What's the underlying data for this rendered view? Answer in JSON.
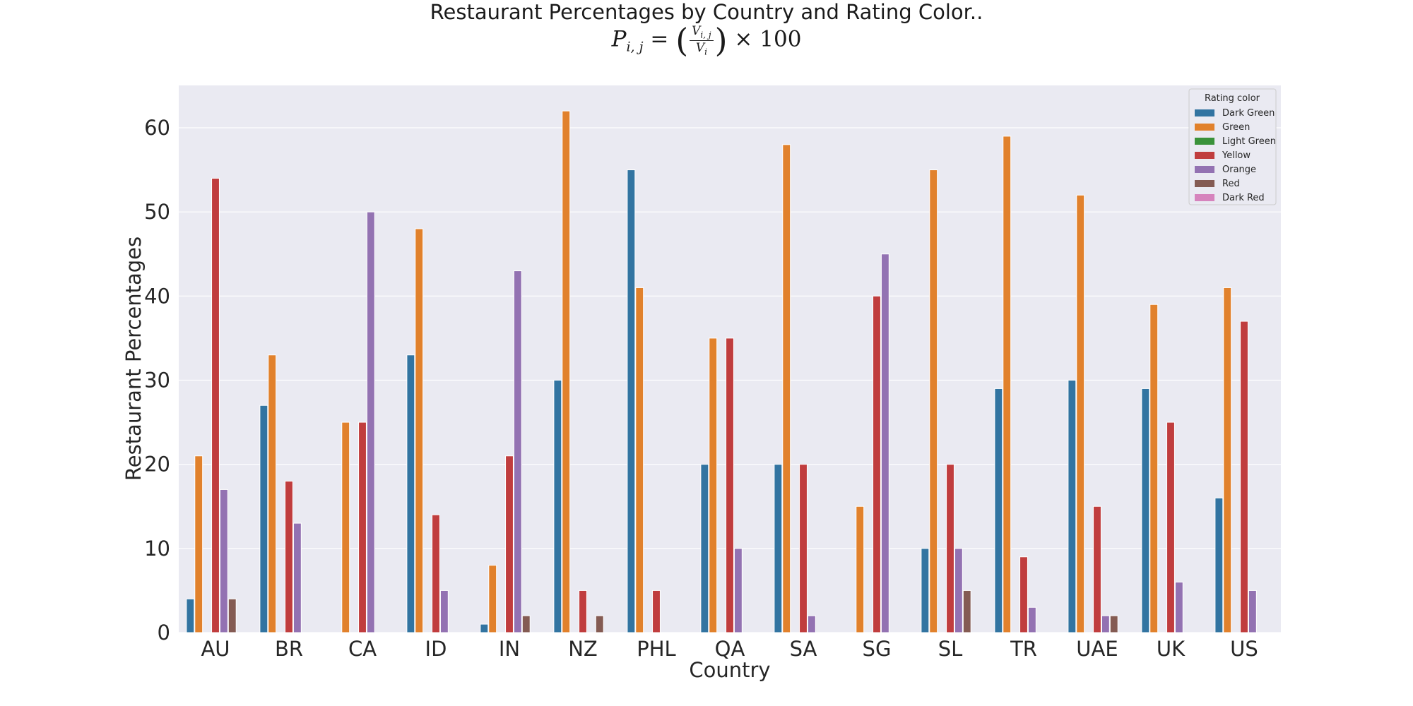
{
  "chart_data": {
    "type": "bar",
    "title": "Restaurant Percentages by Country and Rating Color..",
    "subtitle_formula": {
      "lhs": "P",
      "lhs_sub": "i, j",
      "eq": "=",
      "num": "V",
      "num_sub": "i, j",
      "den": "V",
      "den_sub": "i",
      "times": "× 100"
    },
    "xlabel": "Country",
    "ylabel": "Restaurant Percentages",
    "ylim": [
      0,
      65
    ],
    "yticks": [
      0,
      10,
      20,
      30,
      40,
      50,
      60
    ],
    "grid": true,
    "legend_title": "Rating color",
    "legend_position": "top-right",
    "categories": [
      "AU",
      "BR",
      "CA",
      "ID",
      "IN",
      "NZ",
      "PHL",
      "QA",
      "SA",
      "SG",
      "SL",
      "TR",
      "UAE",
      "UK",
      "US"
    ],
    "series": [
      {
        "name": "Dark Green",
        "color": "#3274a1",
        "values": [
          4,
          27,
          0,
          33,
          1,
          30,
          55,
          20,
          20,
          0,
          10,
          29,
          30,
          29,
          16
        ]
      },
      {
        "name": "Green",
        "color": "#e1812c",
        "values": [
          21,
          33,
          25,
          48,
          8,
          62,
          41,
          35,
          58,
          15,
          55,
          59,
          52,
          39,
          41
        ]
      },
      {
        "name": "Light Green",
        "color": "#3a923a",
        "values": [
          0,
          0,
          0,
          0,
          0,
          0,
          0,
          0,
          0,
          0,
          0,
          0,
          0,
          0,
          0
        ]
      },
      {
        "name": "Yellow",
        "color": "#c03d3e",
        "values": [
          54,
          18,
          25,
          14,
          21,
          5,
          5,
          35,
          20,
          40,
          20,
          9,
          15,
          25,
          37
        ]
      },
      {
        "name": "Orange",
        "color": "#9372b2",
        "values": [
          17,
          13,
          50,
          5,
          43,
          0,
          0,
          10,
          2,
          45,
          10,
          3,
          2,
          6,
          5
        ]
      },
      {
        "name": "Red",
        "color": "#845b53",
        "values": [
          4,
          0,
          0,
          0,
          2,
          2,
          0,
          0,
          0,
          0,
          5,
          0,
          2,
          0,
          0
        ]
      },
      {
        "name": "Dark Red",
        "color": "#d684bd",
        "values": [
          0,
          0,
          0,
          0,
          0,
          0,
          0,
          0,
          0,
          0,
          0,
          0,
          0,
          0,
          0
        ]
      }
    ]
  }
}
